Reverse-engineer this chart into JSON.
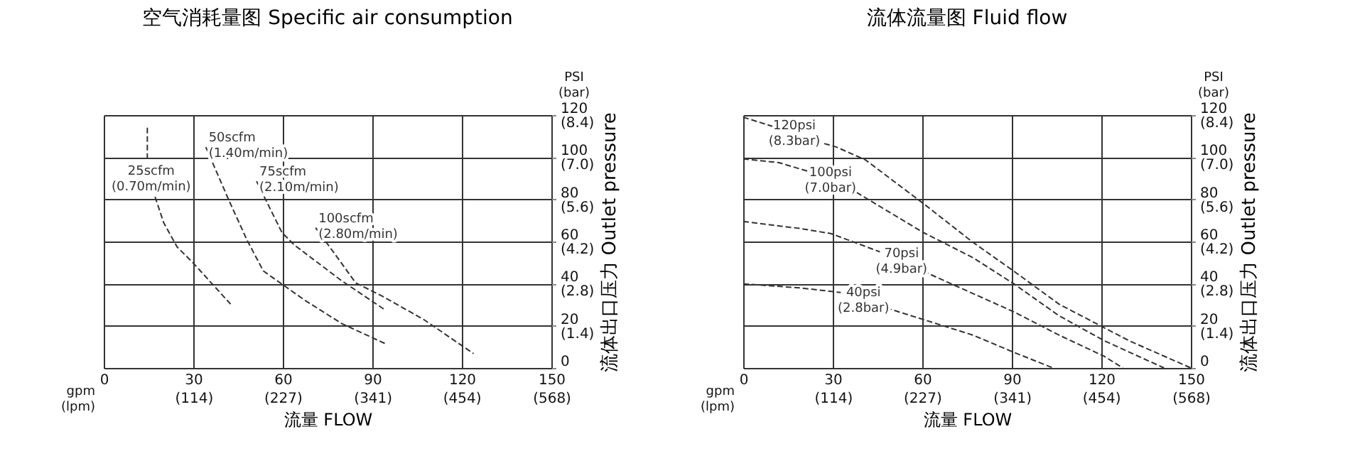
{
  "chart_data": [
    {
      "type": "line",
      "title": "空气消耗量图 Specific air consumption",
      "xlabel": "流量 FLOW",
      "y2label": "流体出口压力 Outlet pressure",
      "xlim": [
        0,
        150
      ],
      "xticks": [
        0,
        30,
        60,
        90,
        120,
        150
      ],
      "x2lim": [
        0,
        568
      ],
      "x2ticks": [
        {
          "value": 114,
          "label": "(114)"
        },
        {
          "value": 227,
          "label": "(227)"
        },
        {
          "value": 341,
          "label": "(341)"
        },
        {
          "value": 454,
          "label": "(454)"
        },
        {
          "value": 568,
          "label": "(568)"
        }
      ],
      "ylim": [
        0,
        120
      ],
      "yticks": [
        0,
        20,
        40,
        60,
        80,
        100,
        120
      ],
      "y2lim": [
        0,
        8.4
      ],
      "y2ticks": [
        {
          "value": 1.4,
          "label": "(1.4)"
        },
        {
          "value": 2.8,
          "label": "(2.8)"
        },
        {
          "value": 4.2,
          "label": "(4.2)"
        },
        {
          "value": 5.6,
          "label": "(5.6)"
        },
        {
          "value": 7.0,
          "label": "(7.0)"
        },
        {
          "value": 8.4,
          "label": "(8.4)"
        }
      ],
      "grid": true,
      "marker": "none",
      "line_style": "dashed",
      "series": [
        {
          "name": "25scfm\n(0.70m/min)",
          "color": "#333333",
          "x": [
            14.6,
            14.6,
            null,
            17.2,
            20.1,
            24.6,
            30.1,
            42.5
          ],
          "values": [
            114,
            98,
            null,
            81.2,
            68.9,
            57.4,
            49.6,
            30.3
          ]
        },
        {
          "name": "50scfm\n(1.40m/min)",
          "color": "#333333",
          "x": [
            34.2,
            41.8,
            48,
            53.5,
            56.3,
            67.3,
            79.7,
            94.2
          ],
          "values": [
            104.8,
            80,
            60.7,
            46,
            43.2,
            32.2,
            21.1,
            11.6
          ]
        },
        {
          "name": "75scfm\n(2.10m/min)",
          "color": "#333333",
          "x": [
            51.2,
            59.7,
            63.9,
            79.7,
            94.2
          ],
          "values": [
            88.6,
            64.3,
            58.3,
            41.4,
            27.6
          ]
        },
        {
          "name": "100scfm\n(2.80m/min)",
          "color": "#333333",
          "x": [
            71,
            78.3,
            84.4,
            93.4,
            107.2,
            123.9
          ],
          "values": [
            66.5,
            52.4,
            40.4,
            34,
            23,
            6.8
          ]
        }
      ],
      "annotations": [
        "gpm\n(lpm)",
        "PSI\n(bar)"
      ]
    },
    {
      "type": "line",
      "title": "流体流量图 Fluid flow",
      "xlabel": "流量 FLOW",
      "y2label": "流体出口压力 Outlet pressure",
      "xlim": [
        0,
        150
      ],
      "xticks": [
        0,
        30,
        60,
        90,
        120,
        150
      ],
      "x2lim": [
        0,
        568
      ],
      "x2ticks": [
        {
          "value": 114,
          "label": "(114)"
        },
        {
          "value": 227,
          "label": "(227)"
        },
        {
          "value": 341,
          "label": "(341)"
        },
        {
          "value": 454,
          "label": "(454)"
        },
        {
          "value": 568,
          "label": "(568)"
        }
      ],
      "ylim": [
        0,
        120
      ],
      "yticks": [
        0,
        20,
        40,
        60,
        80,
        100,
        120
      ],
      "y2lim": [
        0,
        8.4
      ],
      "y2ticks": [
        {
          "value": 1.4,
          "label": "(1.4)"
        },
        {
          "value": 2.8,
          "label": "(2.8)"
        },
        {
          "value": 4.2,
          "label": "(4.2)"
        },
        {
          "value": 5.6,
          "label": "(5.6)"
        },
        {
          "value": 7.0,
          "label": "(7.0)"
        },
        {
          "value": 8.4,
          "label": "(8.4)"
        }
      ],
      "grid": true,
      "marker": "none",
      "line_style": "dashed",
      "series": [
        {
          "name": "120psi\n(8.3bar)",
          "color": "#333333",
          "x": [
            0,
            9.9,
            null,
            24.4,
            31.3,
            41,
            60.3,
            76.9,
            90.7,
            105.8,
            129.3,
            150
          ],
          "values": [
            119,
            114.6,
            null,
            107.6,
            104.8,
            98.7,
            78.1,
            59.7,
            45.9,
            30.3,
            12.9,
            0
          ]
        },
        {
          "name": "100psi\n(7.0bar)",
          "color": "#333333",
          "x": [
            0,
            12,
            23,
            null,
            35.5,
            60.3,
            76.9,
            90.7,
            105.8,
            121,
            141
          ],
          "values": [
            99.2,
            97.4,
            92.8,
            null,
            85.4,
            64.3,
            52.4,
            39.9,
            24.8,
            12.9,
            0
          ]
        },
        {
          "name": "70psi\n(4.9bar)",
          "color": "#333333",
          "x": [
            0,
            18.9,
            29.3,
            45.8,
            null,
            60.3,
            90.7,
            105.8,
            121,
            127.2
          ],
          "values": [
            69.5,
            66.2,
            63.8,
            55.1,
            null,
            45.9,
            26.6,
            15.6,
            5.5,
            0
          ]
        },
        {
          "name": "40psi\n(2.8bar)",
          "color": "#333333",
          "x": [
            0,
            18.9,
            32.7,
            null,
            47.9,
            60.3,
            76.9,
            90.7,
            103.8
          ],
          "values": [
            39.9,
            38,
            35.8,
            null,
            28.5,
            23,
            15.6,
            7.4,
            0
          ]
        }
      ],
      "annotations": [
        "gpm\n(lpm)",
        "PSI\n(bar)"
      ]
    }
  ]
}
